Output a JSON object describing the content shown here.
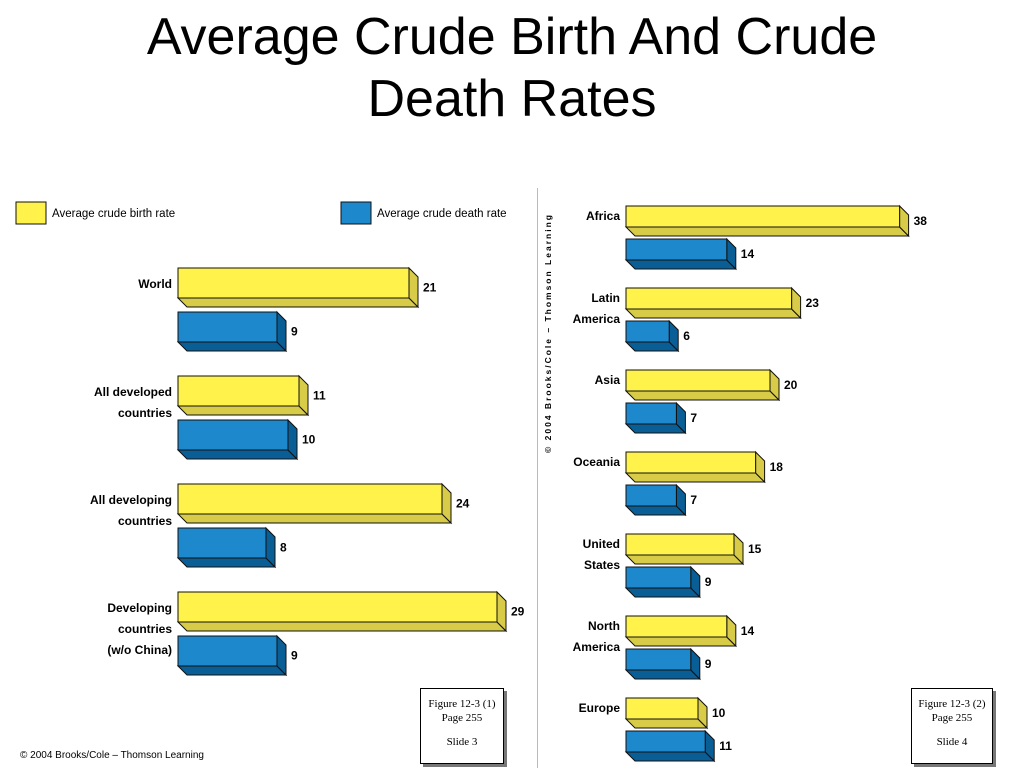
{
  "slide": {
    "title_line1": "Average Crude Birth And Crude",
    "title_line2": "Death Rates"
  },
  "colors": {
    "birth": "#FFF24A",
    "birth_side": "#D8CB47",
    "death": "#1E88CC",
    "death_side": "#0A5E96",
    "outline": "#111111"
  },
  "chart_data": [
    {
      "type": "bar",
      "orientation": "horizontal",
      "categories": [
        "World",
        "All developed countries",
        "All developing countries",
        "Developing countries (w/o China)"
      ],
      "category_lines": [
        [
          "World"
        ],
        [
          "All developed",
          "countries"
        ],
        [
          "All developing",
          "countries"
        ],
        [
          "Developing",
          "countries",
          "(w/o China)"
        ]
      ],
      "series": [
        {
          "name": "Average crude birth rate",
          "values": [
            21,
            11,
            24,
            29
          ]
        },
        {
          "name": "Average crude death rate",
          "values": [
            9,
            10,
            8,
            9
          ]
        }
      ],
      "legend": "top",
      "figure_caption": {
        "line1": "Figure 12-3 (1)",
        "line2": "Page 255",
        "line3": "Slide 3"
      },
      "copyright": "© 2004 Brooks/Cole – Thomson Learning"
    },
    {
      "type": "bar",
      "orientation": "horizontal",
      "categories": [
        "Africa",
        "Latin America",
        "Asia",
        "Oceania",
        "United States",
        "North America",
        "Europe"
      ],
      "category_lines": [
        [
          "Africa"
        ],
        [
          "Latin",
          "America"
        ],
        [
          "Asia"
        ],
        [
          "Oceania"
        ],
        [
          "United",
          "States"
        ],
        [
          "North",
          "America"
        ],
        [
          "Europe"
        ]
      ],
      "series": [
        {
          "name": "Average crude birth rate",
          "values": [
            38,
            23,
            20,
            18,
            15,
            14,
            10
          ]
        },
        {
          "name": "Average crude death rate",
          "values": [
            14,
            6,
            7,
            7,
            9,
            9,
            11
          ]
        }
      ],
      "figure_caption": {
        "line1": "Figure 12-3 (2)",
        "line2": "Page 255",
        "line3": "Slide 4"
      },
      "copyright": "© 2004 Brooks/Cole – Thomson Learning"
    }
  ]
}
